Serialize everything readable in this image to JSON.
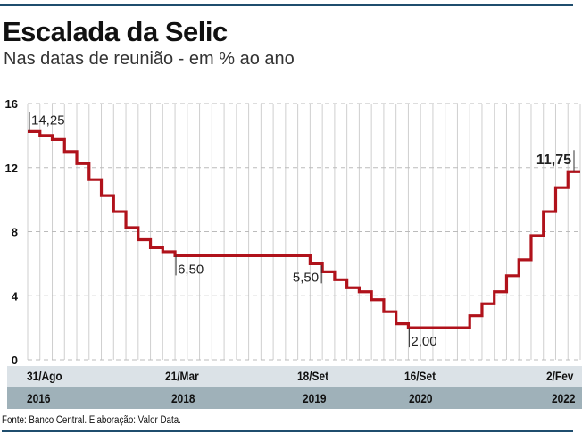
{
  "chart_data": {
    "type": "line",
    "style": "step",
    "title": "Escalada da Selic",
    "subtitle": "Nas datas de reunião - em % ao ano",
    "ylim": [
      0,
      16
    ],
    "yticks": [
      "0",
      "4",
      "8",
      "12",
      "16"
    ],
    "values": [
      14.25,
      14.0,
      13.75,
      13.0,
      12.25,
      11.25,
      10.25,
      9.25,
      8.25,
      7.5,
      7.0,
      6.75,
      6.5,
      6.5,
      6.5,
      6.5,
      6.5,
      6.5,
      6.5,
      6.5,
      6.5,
      6.5,
      6.5,
      6.0,
      5.5,
      5.0,
      4.5,
      4.25,
      3.75,
      3.0,
      2.25,
      2.0,
      2.0,
      2.0,
      2.0,
      2.0,
      2.75,
      3.5,
      4.25,
      5.25,
      6.25,
      7.75,
      9.25,
      10.75,
      11.75
    ],
    "annotations": [
      {
        "index": 0,
        "text": "14,25"
      },
      {
        "index": 12,
        "text": "6,50"
      },
      {
        "index": 24,
        "text": "5,50"
      },
      {
        "index": 31,
        "text": "2,00"
      },
      {
        "index": 44,
        "text": "11,75"
      }
    ],
    "x_labels": [
      {
        "date": "31/Ago",
        "year": "2016"
      },
      {
        "date": "21/Mar",
        "year": "2018"
      },
      {
        "date": "18/Set",
        "year": "2019"
      },
      {
        "date": "16/Set",
        "year": "2020"
      },
      {
        "date": "2/Fev",
        "year": "2022"
      }
    ],
    "line_color": "#b0121b",
    "grid": true
  },
  "source": "Fonte: Banco Central. Elaboração: Valor Data."
}
